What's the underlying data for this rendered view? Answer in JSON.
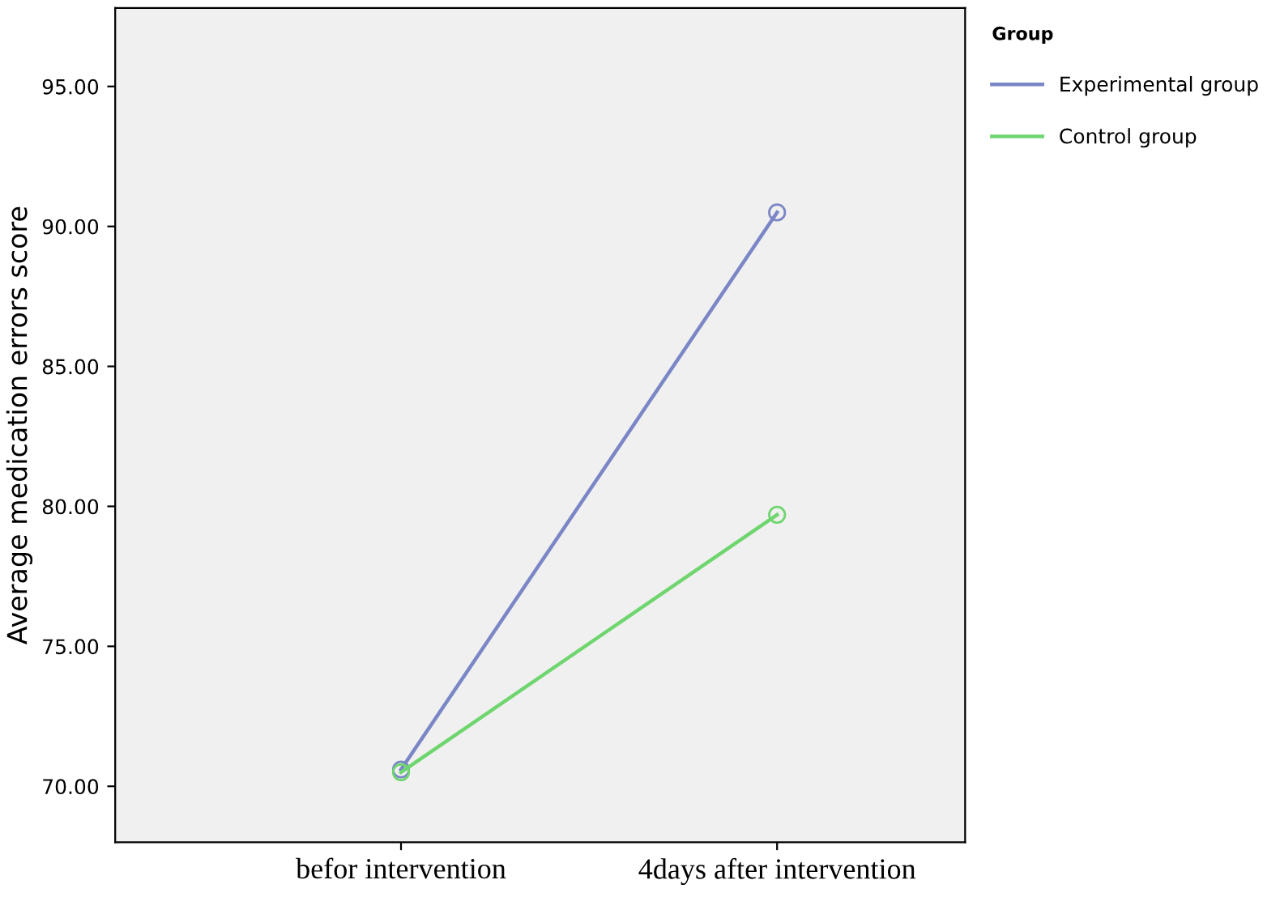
{
  "chart_data": {
    "type": "line",
    "ylabel": "Average medication errors score",
    "legend_title": "Group",
    "categories": [
      "befor intervention",
      "4days after intervention"
    ],
    "series": [
      {
        "name": "Experimental group",
        "color": "#7b86c6",
        "values": [
          70.6,
          90.5
        ]
      },
      {
        "name": "Control group",
        "color": "#6fd66f",
        "values": [
          70.5,
          79.7
        ]
      }
    ],
    "ylim": [
      68,
      97.8
    ],
    "yticks": [
      {
        "value": 70,
        "label": "70.00"
      },
      {
        "value": 75,
        "label": "75.00"
      },
      {
        "value": 80,
        "label": "80.00"
      },
      {
        "value": 85,
        "label": "85.00"
      },
      {
        "value": 90,
        "label": "90.00"
      },
      {
        "value": 95,
        "label": "95.00"
      }
    ],
    "marker": "circle",
    "line_style": "solid",
    "grid": false,
    "legend": "top right"
  }
}
